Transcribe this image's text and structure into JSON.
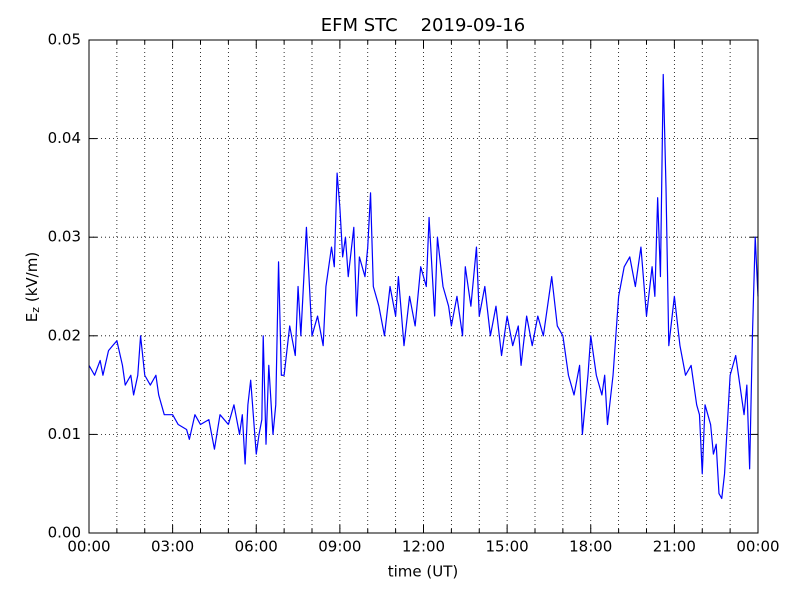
{
  "chart_data": {
    "type": "line",
    "title": "EFM STC    2019-09-16",
    "xlabel": "time (UT)",
    "ylabel": {
      "main": "E",
      "subscript": "z",
      "rest": "(kV/m)"
    },
    "color": "#0000ff",
    "grid": true,
    "xlim": [
      0,
      24
    ],
    "ylim": [
      0,
      0.05
    ],
    "xticks": [
      {
        "value": 0,
        "label": "00:00"
      },
      {
        "value": 1,
        "label": null
      },
      {
        "value": 2,
        "label": null
      },
      {
        "value": 3,
        "label": "03:00"
      },
      {
        "value": 4,
        "label": null
      },
      {
        "value": 5,
        "label": null
      },
      {
        "value": 6,
        "label": "06:00"
      },
      {
        "value": 7,
        "label": null
      },
      {
        "value": 8,
        "label": null
      },
      {
        "value": 9,
        "label": "09:00"
      },
      {
        "value": 10,
        "label": null
      },
      {
        "value": 11,
        "label": null
      },
      {
        "value": 12,
        "label": "12:00"
      },
      {
        "value": 13,
        "label": null
      },
      {
        "value": 14,
        "label": null
      },
      {
        "value": 15,
        "label": "15:00"
      },
      {
        "value": 16,
        "label": null
      },
      {
        "value": 17,
        "label": null
      },
      {
        "value": 18,
        "label": "18:00"
      },
      {
        "value": 19,
        "label": null
      },
      {
        "value": 20,
        "label": null
      },
      {
        "value": 21,
        "label": "21:00"
      },
      {
        "value": 22,
        "label": null
      },
      {
        "value": 23,
        "label": null
      },
      {
        "value": 24,
        "label": "00:00"
      }
    ],
    "yticks": [
      {
        "value": 0,
        "label": "0.00"
      },
      0.01,
      0.02,
      0.03,
      0.04,
      0.05
    ],
    "x": [
      0,
      0.2,
      0.4,
      0.5,
      0.7,
      0.85,
      1,
      1.2,
      1.3,
      1.5,
      1.6,
      1.75,
      1.85,
      2,
      2.2,
      2.4,
      2.5,
      2.7,
      3,
      3.2,
      3.5,
      3.6,
      3.8,
      4,
      4.3,
      4.4,
      4.5,
      4.7,
      5,
      5.2,
      5.4,
      5.5,
      5.6,
      5.7,
      5.8,
      6,
      6.1,
      6.2,
      6.25,
      6.35,
      6.45,
      6.6,
      6.7,
      6.8,
      6.9,
      7,
      7.2,
      7.4,
      7.5,
      7.6,
      7.8,
      8,
      8.2,
      8.4,
      8.5,
      8.7,
      8.8,
      8.9,
      9,
      9.1,
      9.2,
      9.3,
      9.5,
      9.6,
      9.7,
      9.9,
      10,
      10.1,
      10.2,
      10.4,
      10.6,
      10.8,
      11,
      11.1,
      11.3,
      11.5,
      11.7,
      11.9,
      12.1,
      12.2,
      12.4,
      12.5,
      12.7,
      12.9,
      13,
      13.2,
      13.4,
      13.5,
      13.7,
      13.9,
      14,
      14.2,
      14.4,
      14.6,
      14.8,
      15,
      15.2,
      15.4,
      15.5,
      15.7,
      15.9,
      16.1,
      16.3,
      16.6,
      16.8,
      17,
      17.2,
      17.4,
      17.6,
      17.7,
      17.9,
      18,
      18.2,
      18.4,
      18.5,
      18.6,
      18.8,
      19,
      19.2,
      19.4,
      19.6,
      19.8,
      20,
      20.2,
      20.3,
      20.4,
      20.5,
      20.6,
      20.7,
      20.8,
      21,
      21.2,
      21.4,
      21.6,
      21.8,
      21.9,
      22,
      22.1,
      22.3,
      22.4,
      22.5,
      22.6,
      22.7,
      22.8,
      22.9,
      23,
      23.2,
      23.3,
      23.5,
      23.6,
      23.7,
      23.8,
      23.9,
      24
    ],
    "values": [
      0.017,
      0.016,
      0.0175,
      0.016,
      0.0185,
      0.019,
      0.0195,
      0.017,
      0.015,
      0.016,
      0.014,
      0.016,
      0.02,
      0.016,
      0.015,
      0.016,
      0.014,
      0.012,
      0.012,
      0.011,
      0.0105,
      0.0095,
      0.012,
      0.011,
      0.0115,
      0.01,
      0.0085,
      0.012,
      0.011,
      0.013,
      0.01,
      0.012,
      0.007,
      0.013,
      0.0155,
      0.008,
      0.01,
      0.0115,
      0.02,
      0.009,
      0.017,
      0.01,
      0.013,
      0.0275,
      0.016,
      0.016,
      0.021,
      0.018,
      0.025,
      0.02,
      0.031,
      0.02,
      0.022,
      0.019,
      0.025,
      0.029,
      0.027,
      0.0365,
      0.033,
      0.028,
      0.03,
      0.026,
      0.031,
      0.022,
      0.028,
      0.026,
      0.029,
      0.0345,
      0.025,
      0.023,
      0.02,
      0.025,
      0.022,
      0.026,
      0.019,
      0.024,
      0.021,
      0.027,
      0.025,
      0.032,
      0.022,
      0.03,
      0.025,
      0.023,
      0.021,
      0.024,
      0.02,
      0.027,
      0.023,
      0.029,
      0.022,
      0.025,
      0.02,
      0.023,
      0.018,
      0.022,
      0.019,
      0.021,
      0.017,
      0.022,
      0.019,
      0.022,
      0.02,
      0.026,
      0.021,
      0.02,
      0.016,
      0.014,
      0.017,
      0.01,
      0.016,
      0.02,
      0.016,
      0.014,
      0.016,
      0.011,
      0.016,
      0.024,
      0.027,
      0.028,
      0.025,
      0.029,
      0.022,
      0.027,
      0.024,
      0.034,
      0.026,
      0.0465,
      0.035,
      0.019,
      0.024,
      0.019,
      0.016,
      0.017,
      0.013,
      0.012,
      0.006,
      0.013,
      0.011,
      0.008,
      0.009,
      0.004,
      0.0035,
      0.006,
      0.011,
      0.016,
      0.018,
      0.016,
      0.012,
      0.015,
      0.0065,
      0.02,
      0.03,
      0.024
    ]
  }
}
